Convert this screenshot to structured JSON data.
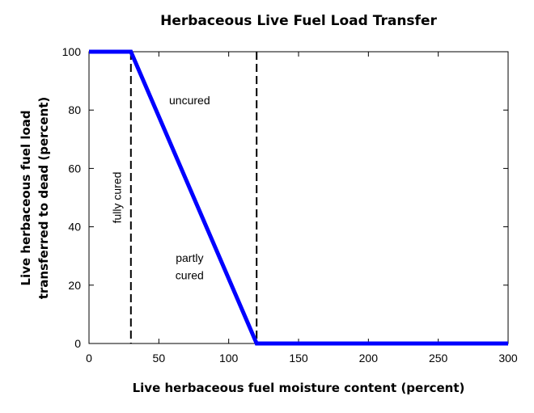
{
  "chart_data": {
    "type": "line",
    "title": "Herbaceous Live Fuel Load Transfer",
    "xlabel": "Live herbaceous fuel moisture content (percent)",
    "ylabel": [
      "Live herbaceous fuel load",
      "transferred to dead (percent)"
    ],
    "xlim": [
      0,
      300
    ],
    "ylim": [
      0,
      100
    ],
    "x_ticks": [
      0,
      50,
      100,
      150,
      200,
      250,
      300
    ],
    "y_ticks": [
      0,
      20,
      40,
      60,
      80,
      100
    ],
    "grid": false,
    "series": [
      {
        "x": [
          0,
          30,
          120,
          300
        ],
        "y": [
          100,
          100,
          0,
          0
        ],
        "color": "#0000ff"
      }
    ],
    "reference_lines": [
      {
        "axis": "x",
        "value": 30,
        "style": "dashed",
        "color": "#000000"
      },
      {
        "axis": "x",
        "value": 120,
        "style": "dashed",
        "color": "#000000"
      }
    ],
    "annotations": [
      {
        "text": "uncured",
        "x": 72,
        "y": 82,
        "rotation": 0
      },
      {
        "text": "partly",
        "x": 72,
        "y": 28,
        "rotation": 0
      },
      {
        "text": "cured",
        "x": 72,
        "y": 22,
        "rotation": 0
      },
      {
        "text": "fully cured",
        "x": 23,
        "y": 50,
        "rotation": -90
      }
    ]
  }
}
